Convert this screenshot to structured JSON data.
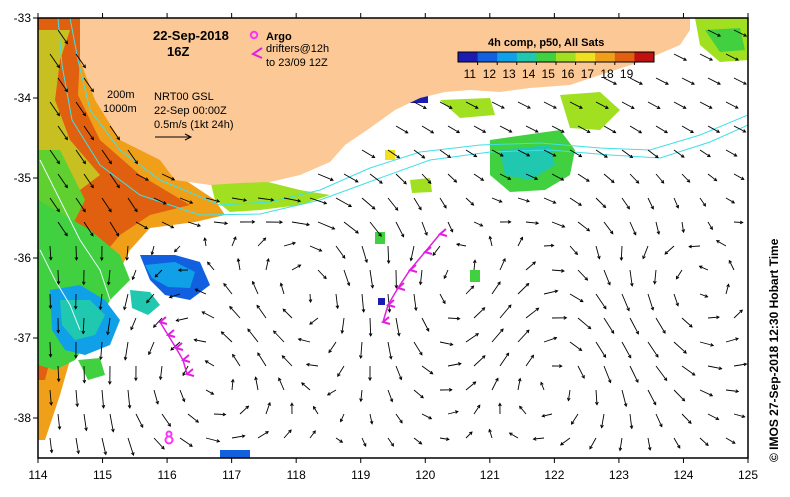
{
  "map": {
    "date_line": "22-Sep-2018",
    "time_line": "16Z",
    "legend_argo": "Argo",
    "legend_drifters_1": "drifters@12h",
    "legend_drifters_2": "to 23/09 12Z",
    "colorbar_title": "4h comp, p50, All Sats",
    "colorbar_ticks": [
      "11",
      "12",
      "13",
      "14",
      "15",
      "16",
      "17",
      "18",
      "19"
    ],
    "colorbar_colors": [
      "#1c1cb0",
      "#1060e0",
      "#10a0e8",
      "#20c8b0",
      "#40d040",
      "#a0e020",
      "#f0e020",
      "#f0a018",
      "#e06010",
      "#c01010"
    ],
    "isobath_200": "200m",
    "isobath_1000": "1000m",
    "current_source": "NRT00 GSL",
    "current_time": "22-Sep 00:00Z",
    "scale_label": "0.5m/s (1kt 24h)",
    "credit": "© IMOS 27-Sep-2018 12:30 Hobart Time",
    "lon_ticks": [
      "114",
      "115",
      "116",
      "117",
      "118",
      "119",
      "120",
      "121",
      "122",
      "123",
      "124",
      "125"
    ],
    "lat_ticks": [
      "-33",
      "-34",
      "-35",
      "-36",
      "-37",
      "-38"
    ],
    "colors": {
      "land": "#fbc896",
      "argo": "#ff33ff",
      "drifter": "#e020e0",
      "isobath": "#40e0e8",
      "arrow": "#000000"
    }
  }
}
